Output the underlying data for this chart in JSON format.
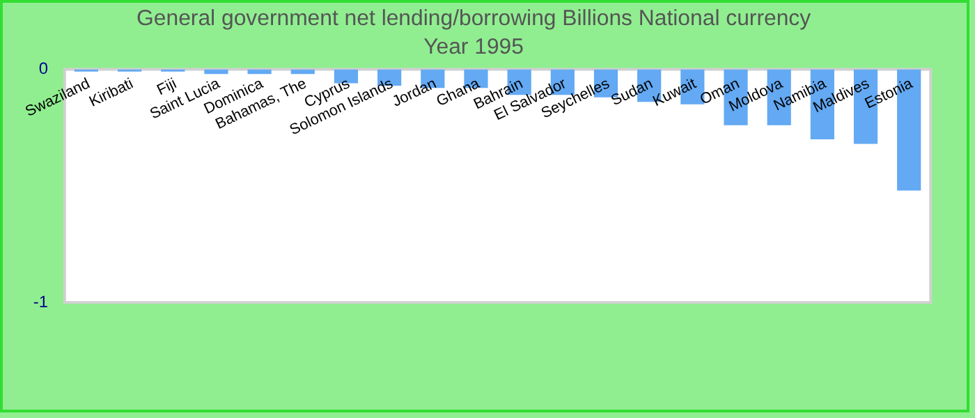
{
  "chart_data": {
    "type": "bar",
    "title": "General government net lending/borrowing Billions National currency",
    "subtitle": "Year 1995",
    "categories": [
      "Swaziland",
      "Kiribati",
      "Fiji",
      "Saint Lucia",
      "Dominica",
      "Bahamas, The",
      "Cyprus",
      "Solomon Islands",
      "Jordan",
      "Ghana",
      "Bahrain",
      "El Salvador",
      "Seychelles",
      "Sudan",
      "Kuwait",
      "Oman",
      "Moldova",
      "Namibia",
      "Maldives",
      "Estonia"
    ],
    "values": [
      -0.01,
      -0.01,
      -0.01,
      -0.02,
      -0.02,
      -0.02,
      -0.06,
      -0.07,
      -0.08,
      -0.08,
      -0.11,
      -0.11,
      -0.12,
      -0.14,
      -0.15,
      -0.24,
      -0.24,
      -0.3,
      -0.32,
      -0.52
    ],
    "color": "#63a9f3",
    "ylim": [
      -1,
      0
    ],
    "yticks": [
      -1,
      0
    ],
    "grid": false,
    "legend": false
  }
}
